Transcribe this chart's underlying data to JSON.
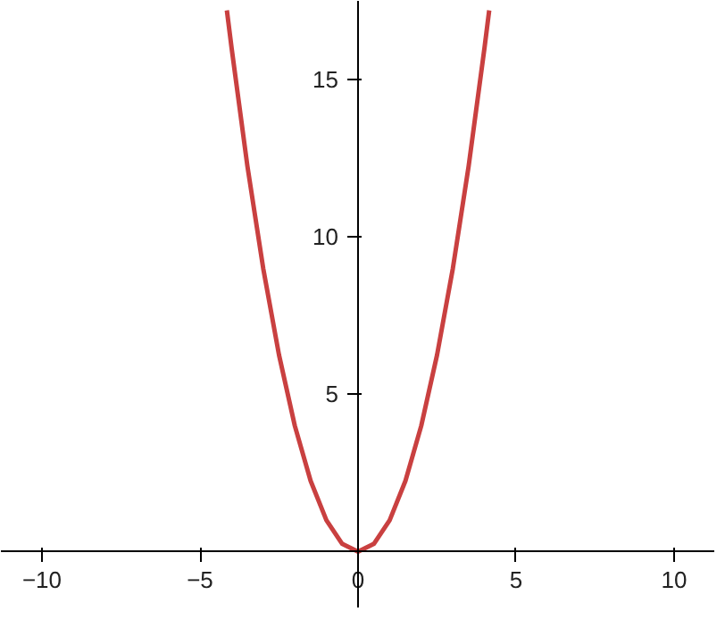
{
  "chart_data": {
    "type": "line",
    "x": [
      -4.15,
      -4,
      -3.5,
      -3,
      -2.5,
      -2,
      -1.5,
      -1,
      -0.5,
      0,
      0.5,
      1,
      1.5,
      2,
      2.5,
      3,
      3.5,
      4,
      4.15
    ],
    "series": [
      {
        "color": "#c94040",
        "values": [
          17.2,
          16,
          12.25,
          9,
          6.25,
          4,
          2.25,
          1,
          0.25,
          0,
          0.25,
          1,
          2.25,
          4,
          6.25,
          9,
          12.25,
          16,
          17.2
        ]
      }
    ],
    "xlim": [
      -11.3,
      11.3
    ],
    "ylim": [
      -1.8,
      17.5
    ],
    "xticks": [
      -10,
      -5,
      0,
      5,
      10
    ],
    "yticks": [
      5,
      10,
      15
    ],
    "grid": false,
    "marker": "none",
    "line_style": "solid"
  }
}
